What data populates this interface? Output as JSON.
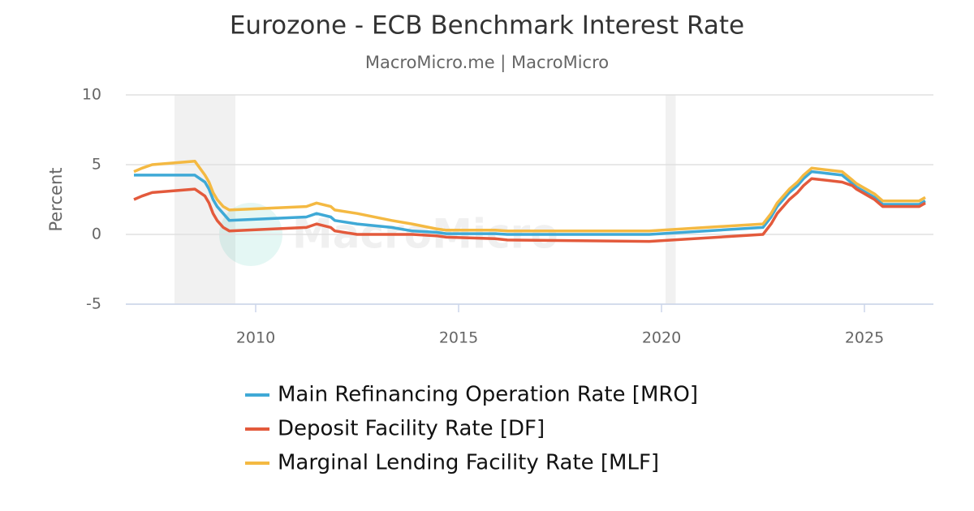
{
  "chart_data": {
    "type": "line",
    "title": "Eurozone - ECB Benchmark Interest Rate",
    "subtitle": "MacroMicro.me | MacroMicro",
    "watermark": "MacroMicro",
    "ylabel": "Percent",
    "xlim": [
      2006.8,
      2026.7
    ],
    "xticks": [
      2010,
      2015,
      2020,
      2025
    ],
    "ylim": [
      -5,
      10
    ],
    "yticks": [
      -5,
      0,
      5,
      10
    ],
    "grid": true,
    "legend": "bottom",
    "shaded_ranges": [
      [
        2008.0,
        2009.5
      ],
      [
        2020.1,
        2020.35
      ]
    ],
    "x": [
      2007.0,
      2007.2,
      2007.45,
      2008.5,
      2008.75,
      2008.85,
      2008.95,
      2009.05,
      2009.2,
      2009.35,
      2011.25,
      2011.5,
      2011.85,
      2011.95,
      2012.5,
      2013.35,
      2013.85,
      2014.45,
      2014.7,
      2015.9,
      2016.2,
      2019.7,
      2022.5,
      2022.7,
      2022.85,
      2023.0,
      2023.15,
      2023.35,
      2023.5,
      2023.7,
      2024.45,
      2024.7,
      2024.8,
      2024.95,
      2025.1,
      2025.25,
      2025.45,
      2026.35,
      2026.5
    ],
    "series": [
      {
        "name": "Main Refinancing Operation Rate [MRO]",
        "color": "#3fa9d6",
        "values": [
          4.25,
          4.25,
          4.25,
          4.25,
          3.75,
          3.25,
          2.5,
          2.0,
          1.5,
          1.0,
          1.25,
          1.5,
          1.25,
          1.0,
          0.75,
          0.5,
          0.25,
          0.15,
          0.05,
          0.05,
          0,
          0,
          0.5,
          1.25,
          2.0,
          2.5,
          3.0,
          3.5,
          4.0,
          4.5,
          4.25,
          3.65,
          3.4,
          3.15,
          2.9,
          2.65,
          2.15,
          2.15,
          2.4
        ]
      },
      {
        "name": "Deposit Facility Rate [DF]",
        "color": "#e35a3c",
        "values": [
          2.5,
          2.75,
          3.0,
          3.25,
          2.75,
          2.25,
          1.5,
          1.0,
          0.5,
          0.25,
          0.5,
          0.75,
          0.5,
          0.25,
          0,
          0,
          0,
          -0.1,
          -0.2,
          -0.3,
          -0.4,
          -0.5,
          0,
          0.75,
          1.5,
          2.0,
          2.5,
          3.0,
          3.5,
          4.0,
          3.75,
          3.5,
          3.25,
          3.0,
          2.75,
          2.5,
          2.0,
          2.0,
          2.25
        ]
      },
      {
        "name": "Marginal Lending Facility Rate [MLF]",
        "color": "#f4b942",
        "values": [
          4.5,
          4.75,
          5.0,
          5.25,
          4.25,
          3.75,
          3.0,
          2.5,
          2.0,
          1.75,
          2.0,
          2.25,
          2.0,
          1.75,
          1.5,
          1.0,
          0.75,
          0.4,
          0.3,
          0.3,
          0.25,
          0.25,
          0.75,
          1.5,
          2.25,
          2.75,
          3.25,
          3.75,
          4.25,
          4.75,
          4.5,
          3.9,
          3.65,
          3.4,
          3.15,
          2.9,
          2.4,
          2.4,
          2.65
        ]
      }
    ]
  }
}
